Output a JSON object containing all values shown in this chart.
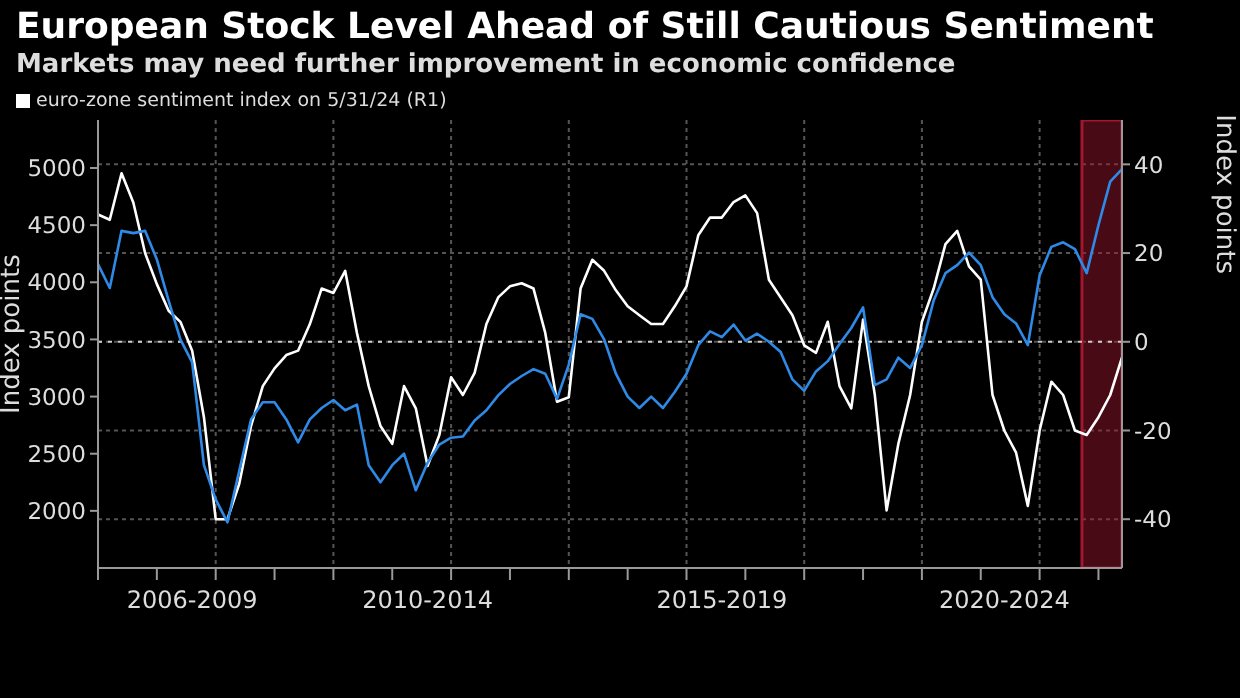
{
  "chart_data": {
    "type": "line",
    "title": "European Stock Level Ahead of Still Cautious Sentiment",
    "subtitle": "Markets may need further improvement in economic confidence",
    "ylabel": "Index points",
    "y2label": "Index points",
    "categories": [
      null,
      null,
      null,
      null,
      null,
      null,
      null,
      null,
      "2006-2009",
      null,
      null,
      null,
      null,
      null,
      null,
      null,
      null,
      null,
      null,
      null,
      null,
      null,
      null,
      null,
      null,
      null,
      null,
      null,
      "2010-2014",
      null,
      null,
      null,
      null,
      null,
      null,
      null,
      null,
      null,
      null,
      null,
      null,
      null,
      null,
      null,
      null,
      null,
      null,
      null,
      null,
      null,
      null,
      null,
      null,
      "2015-2019",
      null,
      null,
      null,
      null,
      null,
      null,
      null,
      null,
      null,
      null,
      null,
      null,
      null,
      null,
      null,
      null,
      null,
      null,
      null,
      null,
      null,
      null,
      null,
      "2020-2024",
      null,
      null,
      null,
      null,
      null,
      null,
      null,
      null,
      null,
      null
    ],
    "ylim": [
      1500,
      5420
    ],
    "yticks": [
      2000,
      2500,
      3000,
      3500,
      4000,
      4500,
      5000
    ],
    "y2lim": [
      -51,
      50
    ],
    "y2ticks": [
      -40,
      -20,
      0,
      20,
      40
    ],
    "grid": true,
    "legend": "top left",
    "marker": "none",
    "line_style": "solid",
    "ref_lines": [
      {
        "axis": "y2",
        "value": 0,
        "color": "#cccccc",
        "line_style": "dotted"
      }
    ],
    "series": [
      {
        "name": "euro-zone sentiment index on 5/31/24 (R1)",
        "color": "#ffffff",
        "axis": "y2",
        "values": [
          28.7,
          27.5,
          38,
          31.4,
          20,
          13,
          7,
          4.5,
          -2,
          -17,
          -40,
          -40,
          -32,
          -19,
          -10,
          -6,
          -3,
          -2,
          4,
          12,
          11,
          16,
          2,
          -10,
          -19,
          -23,
          -10,
          -15,
          -28,
          -21,
          -8,
          -12,
          -7,
          4,
          10,
          12.5,
          13.2,
          12,
          2,
          -13.5,
          -12.5,
          12,
          18.5,
          16,
          11.6,
          8,
          6,
          4,
          4,
          8,
          12.5,
          24,
          28,
          28,
          31.5,
          33,
          29,
          14,
          10,
          6,
          -0.8,
          -2.5,
          4.5,
          -10,
          -15,
          5,
          -12,
          -38,
          -23,
          -12,
          4.5,
          12,
          22,
          25,
          17,
          14,
          -12,
          -20,
          -25,
          -37,
          -20,
          -9,
          -12,
          -20,
          -21,
          -17,
          -12,
          -3.5
        ]
      },
      {
        "color": "#2e8ae6",
        "values": [
          4160,
          3950,
          4450,
          4430,
          4450,
          4200,
          3840,
          3500,
          3300,
          2400,
          2100,
          1900,
          2350,
          2800,
          2950,
          2950,
          2800,
          2600,
          2800,
          2900,
          2970,
          2880,
          2930,
          2400,
          2250,
          2400,
          2500,
          2180,
          2420,
          2580,
          2640,
          2650,
          2790,
          2880,
          3010,
          3110,
          3180,
          3240,
          3200,
          2980,
          3280,
          3720,
          3680,
          3500,
          3200,
          3000,
          2900,
          3000,
          2900,
          3040,
          3200,
          3450,
          3570,
          3520,
          3630,
          3490,
          3550,
          3480,
          3390,
          3150,
          3050,
          3220,
          3310,
          3460,
          3600,
          3780,
          3100,
          3150,
          3340,
          3250,
          3450,
          3840,
          4080,
          4150,
          4260,
          4150,
          3870,
          3720,
          3640,
          3450,
          4060,
          4310,
          4350,
          4290,
          4080,
          4500,
          4880,
          4990
        ]
      }
    ]
  }
}
